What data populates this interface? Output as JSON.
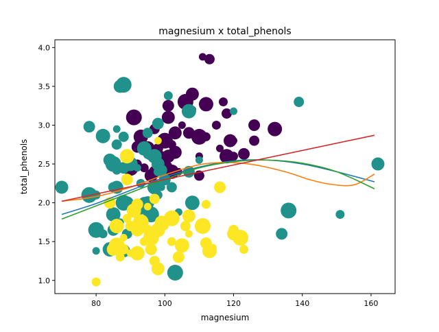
{
  "chart_data": {
    "type": "scatter",
    "title": "magnesium x total_phenols",
    "xlabel": "magnesium",
    "ylabel": "total_phenols",
    "xlim": [
      68,
      167
    ],
    "ylim": [
      0.83,
      4.1
    ],
    "xticks": [
      80,
      100,
      120,
      140,
      160
    ],
    "yticks": [
      1.0,
      1.5,
      2.0,
      2.5,
      3.0,
      3.5,
      4.0
    ],
    "grid": false,
    "legend": "none",
    "colors": {
      "class_0": "#440154",
      "class_1": "#21918c",
      "class_2": "#fde725",
      "fit_1": "#1f77b4",
      "fit_2": "#ff7f0e",
      "fit_3": "#2ca02c",
      "fit_4": "#d62728"
    },
    "series": [
      {
        "values": [
          [
            111,
            3.88
          ],
          [
            113,
            3.85
          ],
          [
            108,
            3.4
          ],
          [
            106,
            3.3
          ],
          [
            117,
            3.3
          ],
          [
            101,
            3.25
          ],
          [
            112,
            3.27
          ],
          [
            108,
            3.2
          ],
          [
            118,
            3.15
          ],
          [
            101,
            3.1
          ],
          [
            91,
            3.1
          ],
          [
            115,
            3.0
          ],
          [
            126,
            3.0
          ],
          [
            132,
            2.95
          ],
          [
            105,
            3.0
          ],
          [
            97,
            2.95
          ],
          [
            103,
            2.9
          ],
          [
            110,
            2.85
          ],
          [
            112,
            2.85
          ],
          [
            107,
            2.9
          ],
          [
            93,
            2.85
          ],
          [
            120,
            2.8
          ],
          [
            126,
            2.8
          ],
          [
            119,
            2.8
          ],
          [
            100,
            2.8
          ],
          [
            102,
            2.75
          ],
          [
            92,
            2.72
          ],
          [
            95,
            2.7
          ],
          [
            116,
            2.7
          ],
          [
            98,
            2.7
          ],
          [
            103,
            2.65
          ],
          [
            96,
            2.65
          ],
          [
            120,
            2.6
          ],
          [
            123,
            2.63
          ],
          [
            118,
            2.6
          ],
          [
            110,
            2.6
          ],
          [
            99,
            2.6
          ],
          [
            101,
            2.6
          ],
          [
            90,
            2.45
          ],
          [
            94,
            2.45
          ],
          [
            97,
            2.4
          ],
          [
            102,
            2.4
          ],
          [
            104,
            2.4
          ],
          [
            110,
            2.35
          ],
          [
            96,
            2.35
          ],
          [
            100,
            2.45
          ],
          [
            92,
            2.5
          ]
        ]
      },
      {
        "values": [
          [
            70,
            2.2
          ],
          [
            78,
            2.1
          ],
          [
            80,
            2.1
          ],
          [
            78,
            2.98
          ],
          [
            82,
            2.86
          ],
          [
            86,
            2.95
          ],
          [
            88,
            2.85
          ],
          [
            87,
            3.5
          ],
          [
            88,
            3.52
          ],
          [
            101,
            3.38
          ],
          [
            98,
            3.02
          ],
          [
            107,
            3.18
          ],
          [
            120,
            3.18
          ],
          [
            139,
            3.3
          ],
          [
            162,
            2.5
          ],
          [
            136,
            1.9
          ],
          [
            151,
            1.85
          ],
          [
            134,
            1.6
          ],
          [
            108,
            2.0
          ],
          [
            104,
            1.88
          ],
          [
            86,
            2.75
          ],
          [
            84,
            2.55
          ],
          [
            85,
            2.5
          ],
          [
            86,
            2.42
          ],
          [
            88,
            2.45
          ],
          [
            90,
            2.5
          ],
          [
            92,
            2.45
          ],
          [
            85,
            2.2
          ],
          [
            86,
            2.2
          ],
          [
            88,
            2.0
          ],
          [
            93,
            2.25
          ],
          [
            94,
            2.0
          ],
          [
            97,
            2.2
          ],
          [
            99,
            2.2
          ],
          [
            102,
            2.2
          ],
          [
            95,
            2.0
          ],
          [
            96,
            1.85
          ],
          [
            98,
            2.4
          ],
          [
            100,
            2.3
          ],
          [
            97,
            2.6
          ],
          [
            110,
            2.55
          ],
          [
            95,
            2.9
          ],
          [
            98,
            2.5
          ],
          [
            80,
            1.65
          ],
          [
            82,
            1.6
          ],
          [
            85,
            1.65
          ],
          [
            84,
            1.4
          ],
          [
            80,
            1.38
          ],
          [
            89,
            1.6
          ],
          [
            88,
            1.38
          ],
          [
            103,
            1.1
          ],
          [
            98,
            2.1
          ],
          [
            107,
            2.4
          ],
          [
            85,
            1.85
          ],
          [
            87,
            1.75
          ],
          [
            91,
            1.95
          ],
          [
            89,
            2.0
          ],
          [
            93,
            1.95
          ],
          [
            95,
            2.62
          ],
          [
            99,
            2.42
          ],
          [
            94,
            2.7
          ]
        ]
      },
      {
        "values": [
          [
            80,
            0.98
          ],
          [
            84,
            2.0
          ],
          [
            86,
            1.7
          ],
          [
            88,
            1.55
          ],
          [
            90,
            1.7
          ],
          [
            92,
            1.65
          ],
          [
            93,
            1.75
          ],
          [
            89,
            1.8
          ],
          [
            92,
            1.98
          ],
          [
            91,
            1.9
          ],
          [
            95,
            1.95
          ],
          [
            97,
            2.05
          ],
          [
            99,
            1.75
          ],
          [
            96,
            1.55
          ],
          [
            94,
            1.5
          ],
          [
            96,
            1.4
          ],
          [
            92,
            1.35
          ],
          [
            90,
            1.35
          ],
          [
            88,
            1.4
          ],
          [
            85,
            1.4
          ],
          [
            86,
            1.45
          ],
          [
            87,
            1.3
          ],
          [
            89,
            2.3
          ],
          [
            89,
            2.6
          ],
          [
            98,
            2.8
          ],
          [
            97,
            1.25
          ],
          [
            98,
            1.15
          ],
          [
            102,
            1.8
          ],
          [
            102,
            1.5
          ],
          [
            104,
            1.3
          ],
          [
            105,
            1.45
          ],
          [
            107,
            1.6
          ],
          [
            106,
            1.7
          ],
          [
            107,
            1.83
          ],
          [
            111,
            1.7
          ],
          [
            112,
            1.98
          ],
          [
            112,
            1.48
          ],
          [
            113,
            1.38
          ],
          [
            114,
            1.42
          ],
          [
            120,
            1.65
          ],
          [
            120,
            1.6
          ],
          [
            122,
            1.55
          ],
          [
            123,
            1.4
          ],
          [
            116,
            2.2
          ],
          [
            98,
            1.65
          ],
          [
            100,
            1.7
          ],
          [
            95,
            1.65
          ]
        ]
      }
    ],
    "fits": [
      {
        "points": [
          [
            70,
            1.85
          ],
          [
            80,
            1.99
          ],
          [
            90,
            2.16
          ],
          [
            100,
            2.33
          ],
          [
            110,
            2.46
          ],
          [
            120,
            2.54
          ],
          [
            130,
            2.55
          ],
          [
            140,
            2.5
          ],
          [
            150,
            2.4
          ],
          [
            161,
            2.27
          ]
        ]
      },
      {
        "points": [
          [
            70,
            2.02
          ],
          [
            80,
            2.08
          ],
          [
            90,
            2.2
          ],
          [
            100,
            2.36
          ],
          [
            110,
            2.49
          ],
          [
            118,
            2.52
          ],
          [
            126,
            2.49
          ],
          [
            135,
            2.4
          ],
          [
            142,
            2.3
          ],
          [
            148,
            2.24
          ],
          [
            155,
            2.23
          ],
          [
            161,
            2.37
          ]
        ]
      },
      {
        "points": [
          [
            70,
            1.79
          ],
          [
            80,
            1.96
          ],
          [
            90,
            2.13
          ],
          [
            100,
            2.3
          ],
          [
            110,
            2.45
          ],
          [
            120,
            2.53
          ],
          [
            130,
            2.55
          ],
          [
            140,
            2.51
          ],
          [
            150,
            2.4
          ],
          [
            161,
            2.18
          ]
        ]
      },
      {
        "points": [
          [
            70,
            2.02
          ],
          [
            161,
            2.87
          ]
        ]
      }
    ]
  }
}
